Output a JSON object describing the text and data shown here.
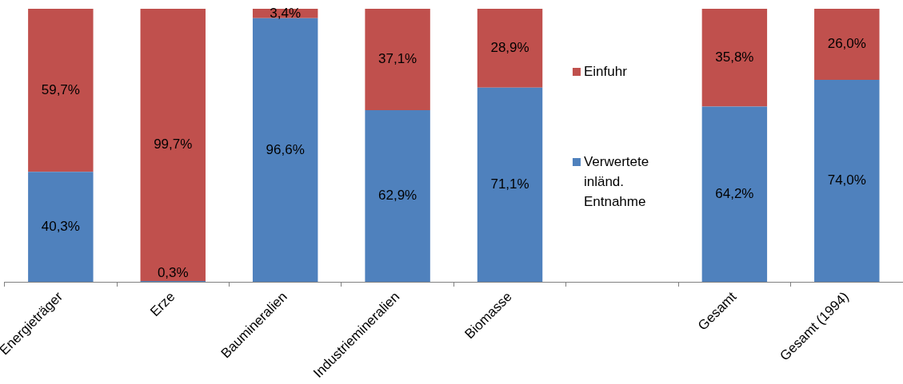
{
  "chart_data": {
    "type": "bar",
    "stacked": true,
    "data_labels": true,
    "legend": "right",
    "categories": [
      "Energieträger",
      "Erze",
      "Baumineralien",
      "Industriemineralien",
      "Biomasse",
      null,
      "Gesamt",
      "Gesamt (1994)"
    ],
    "series": [
      {
        "name": "Verwertete inländ. Entnahme",
        "color": "#4f81bd",
        "values": [
          40.3,
          0.3,
          96.6,
          62.9,
          71.1,
          null,
          64.2,
          74.0
        ],
        "value_labels": [
          "40,3%",
          "0,3%",
          "96,6%",
          "62,9%",
          "71,1%",
          null,
          "64,2%",
          "74,0%"
        ]
      },
      {
        "name": "Einfuhr",
        "color": "#c0504d",
        "values": [
          59.7,
          99.7,
          3.4,
          37.1,
          28.9,
          null,
          35.8,
          26.0
        ],
        "value_labels": [
          "59,7%",
          "99,7%",
          "3,4%",
          "37,1%",
          "28,9%",
          null,
          "35,8%",
          "26,0%"
        ]
      }
    ]
  }
}
